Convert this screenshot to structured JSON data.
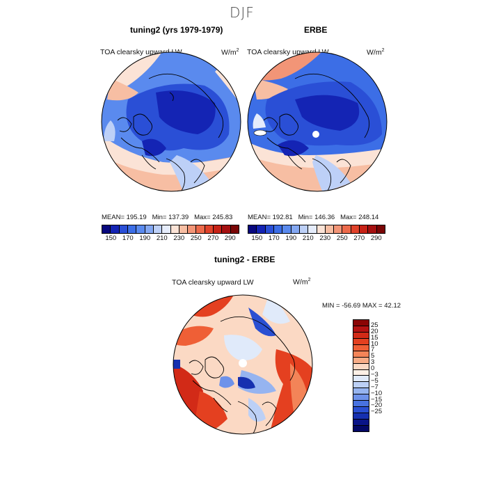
{
  "season": "DJF",
  "panels": [
    {
      "title": "tuning2 (yrs 1979-1979)",
      "variable": "TOA clearsky upward LW",
      "unit": "W/m",
      "unit_exp": "2",
      "mean": "195.19",
      "min": "137.39",
      "max": "245.83"
    },
    {
      "title": "ERBE",
      "variable": "TOA clearsky upward LW",
      "unit": "W/m",
      "unit_exp": "2",
      "mean": "192.81",
      "min": "146.36",
      "max": "248.14"
    }
  ],
  "diff": {
    "title": "tuning2 - ERBE",
    "variable": "TOA clearsky upward LW",
    "unit": "W/m",
    "unit_exp": "2",
    "min_label": "MIN =",
    "min": "-56.69",
    "max_label": "MAX =",
    "max": "42.12"
  },
  "stats_labels": {
    "mean": "MEAN=",
    "min": "Min=",
    "max": "Max="
  },
  "colorbar_main": {
    "ticks": [
      "150",
      "170",
      "190",
      "210",
      "230",
      "250",
      "270",
      "290"
    ],
    "colors": [
      "#08087e",
      "#1424b4",
      "#2a4fd6",
      "#3c6ee6",
      "#5a8aee",
      "#84a8f2",
      "#bdd0f7",
      "#e5ecfb",
      "#fbe3d6",
      "#f7bea3",
      "#f29577",
      "#ec6a4b",
      "#e0422a",
      "#c72216",
      "#a51010",
      "#7a0606"
    ]
  },
  "colorbar_diff": {
    "ticks": [
      "25",
      "20",
      "15",
      "10",
      "7",
      "5",
      "3",
      "0",
      "−3",
      "−5",
      "−7",
      "−10",
      "−15",
      "−20",
      "−25"
    ],
    "colors": [
      "#8b0505",
      "#b51212",
      "#d22a17",
      "#e44020",
      "#ef5f36",
      "#f38458",
      "#f7ac86",
      "#fbd9c4",
      "#fdf0e6",
      "#e0eafa",
      "#bcd0f6",
      "#96b4f0",
      "#6e92ea",
      "#4872e0",
      "#2a4fd2",
      "#1630b0",
      "#0a1488",
      "#040866"
    ]
  }
}
